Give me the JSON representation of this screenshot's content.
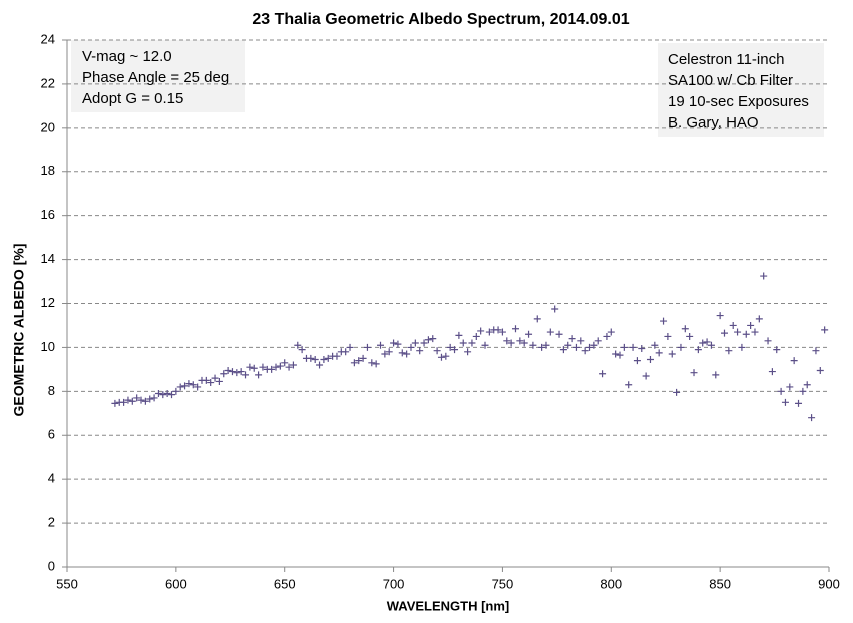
{
  "chart_data": {
    "type": "scatter",
    "title": "23 Thalia Geometric Albedo Spectrum, 2014.09.01",
    "xlabel": "WAVELENGTH [nm]",
    "ylabel": "GEOMETRIC ALBEDO [%]",
    "annotations": [
      [
        "V-mag ~ 12.0",
        "Phase Angle = 25 deg",
        "Adopt G = 0.15"
      ],
      [
        "Celestron 11-inch",
        "SA100 w/ Cb Filter",
        "19 10-sec Exposures",
        "B. Gary, HAO"
      ]
    ],
    "color": "#5b4f88",
    "grid": true,
    "xlim": [
      550,
      900
    ],
    "xticks": [
      550,
      600,
      650,
      700,
      750,
      800,
      850,
      900
    ],
    "ylim": [
      0,
      24
    ],
    "yticks": [
      0,
      2,
      4,
      6,
      8,
      10,
      12,
      14,
      16,
      18,
      20,
      22,
      24
    ],
    "x": [
      572,
      574,
      576,
      578,
      580,
      582,
      584,
      586,
      588,
      590,
      592,
      594,
      596,
      598,
      600,
      602,
      604,
      606,
      608,
      610,
      612,
      614,
      616,
      618,
      620,
      622,
      624,
      626,
      628,
      630,
      632,
      634,
      636,
      638,
      640,
      642,
      644,
      646,
      648,
      650,
      652,
      654,
      656,
      658,
      660,
      662,
      664,
      666,
      668,
      670,
      672,
      674,
      676,
      678,
      680,
      682,
      684,
      686,
      688,
      690,
      692,
      694,
      696,
      698,
      700,
      702,
      704,
      706,
      708,
      710,
      712,
      714,
      716,
      718,
      720,
      722,
      724,
      726,
      728,
      730,
      732,
      734,
      736,
      738,
      740,
      742,
      744,
      746,
      748,
      750,
      752,
      754,
      756,
      758,
      760,
      762,
      764,
      766,
      768,
      770,
      772,
      774,
      776,
      778,
      780,
      782,
      784,
      786,
      788,
      790,
      792,
      794,
      796,
      798,
      800,
      802,
      804,
      806,
      808,
      810,
      812,
      814,
      816,
      818,
      820,
      822,
      824,
      826,
      828,
      830,
      832,
      834,
      836,
      838,
      840,
      842,
      844,
      846,
      848,
      850,
      852,
      854,
      856,
      858,
      860,
      862,
      864,
      866,
      868,
      870,
      872,
      874,
      876,
      878,
      880,
      882,
      884,
      886,
      888,
      890,
      892,
      894,
      896,
      898
    ],
    "values": [
      7.45,
      7.5,
      7.5,
      7.6,
      7.55,
      7.7,
      7.6,
      7.55,
      7.65,
      7.7,
      7.9,
      7.85,
      7.9,
      7.85,
      8.0,
      8.2,
      8.25,
      8.35,
      8.3,
      8.2,
      8.5,
      8.5,
      8.4,
      8.6,
      8.45,
      8.8,
      8.95,
      8.9,
      8.85,
      8.9,
      8.75,
      9.1,
      9.05,
      8.75,
      9.1,
      9.0,
      9.0,
      9.1,
      9.15,
      9.3,
      9.1,
      9.2,
      10.1,
      9.9,
      9.5,
      9.5,
      9.45,
      9.2,
      9.45,
      9.5,
      9.6,
      9.6,
      9.8,
      9.8,
      10.0,
      9.3,
      9.4,
      9.5,
      10.0,
      9.3,
      9.25,
      10.1,
      9.7,
      9.8,
      10.2,
      10.15,
      9.75,
      9.7,
      10.0,
      10.2,
      9.85,
      10.2,
      10.35,
      10.4,
      9.85,
      9.55,
      9.6,
      10.0,
      9.9,
      10.55,
      10.2,
      9.8,
      10.2,
      10.5,
      10.75,
      10.1,
      10.7,
      10.8,
      10.8,
      10.7,
      10.3,
      10.2,
      10.85,
      10.3,
      10.2,
      10.6,
      10.1,
      11.3,
      10.0,
      10.1,
      10.7,
      11.75,
      10.6,
      9.9,
      10.1,
      10.4,
      10.0,
      10.3,
      9.85,
      10.0,
      10.1,
      10.3,
      8.8,
      10.5,
      10.7,
      9.7,
      9.65,
      10.0,
      8.3,
      10.0,
      9.4,
      9.95,
      8.7,
      9.45,
      10.1,
      9.75,
      11.2,
      10.5,
      9.7,
      7.95,
      10.0,
      10.85,
      10.5,
      8.85,
      9.9,
      10.2,
      10.25,
      10.1,
      8.75,
      11.45,
      10.65,
      9.85,
      11.0,
      10.7,
      10.0,
      10.6,
      11.0,
      10.7,
      11.3,
      13.25,
      10.3,
      8.9,
      9.9,
      8.0,
      7.5,
      8.2,
      9.4,
      7.45,
      8.0,
      8.3,
      6.8,
      9.85,
      8.95,
      10.8
    ]
  }
}
